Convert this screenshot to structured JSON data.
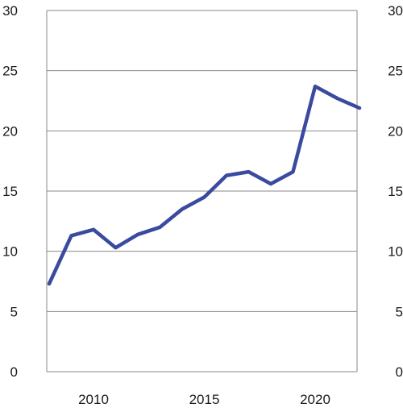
{
  "chart_data": {
    "type": "line",
    "title": "",
    "xlabel": "",
    "ylabel": "",
    "x": [
      2008,
      2009,
      2010,
      2011,
      2012,
      2013,
      2014,
      2015,
      2016,
      2017,
      2018,
      2019,
      2020,
      2021,
      2022
    ],
    "series": [
      {
        "values": [
          7.3,
          11.3,
          11.8,
          10.3,
          11.4,
          12.0,
          13.5,
          14.5,
          16.3,
          16.6,
          15.6,
          16.6,
          23.7,
          22.7,
          21.9
        ],
        "color": "#3a4a9f"
      }
    ],
    "xlim": [
      2008,
      2022
    ],
    "ylim": [
      0,
      30
    ],
    "yticks": [
      0,
      5,
      10,
      15,
      20,
      25,
      30
    ],
    "xticks": [
      2010,
      2015,
      2020
    ],
    "ytick_labels_left": [
      "0",
      "5",
      "10",
      "15",
      "20",
      "25",
      "30"
    ],
    "ytick_labels_right": [
      "0",
      "5",
      "10",
      "15",
      "20",
      "25",
      "30"
    ],
    "xtick_labels": [
      "2010",
      "2015",
      "2020"
    ],
    "grid": "horizontal",
    "dual_y_axis": true,
    "grid_color": "#8a8a8a"
  }
}
